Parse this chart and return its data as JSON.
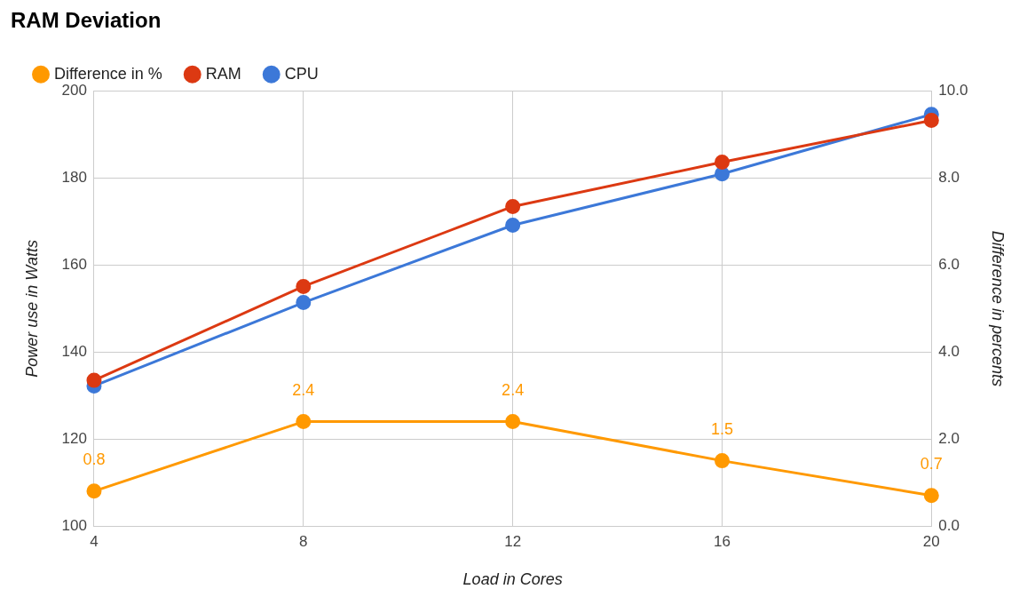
{
  "chart_data": {
    "type": "line",
    "title": "RAM Deviation",
    "xlabel": "Load in Cores",
    "ylabel": "Power use in Watts",
    "y2label": "Difference in percents",
    "x": [
      4,
      8,
      12,
      16,
      20
    ],
    "xlim": [
      4,
      20
    ],
    "xticks": [
      4,
      8,
      12,
      16,
      20
    ],
    "ylim": [
      100,
      200
    ],
    "yticks": [
      100,
      120,
      140,
      160,
      180,
      200
    ],
    "y2lim": [
      0,
      10
    ],
    "y2ticks": [
      {
        "value": 0,
        "label": "0.0"
      },
      {
        "value": 2,
        "label": "2.0"
      },
      {
        "value": 4,
        "label": "4.0"
      },
      {
        "value": 6,
        "label": "6.0"
      },
      {
        "value": 8,
        "label": "8.0"
      },
      {
        "value": 10,
        "label": "10.0"
      }
    ],
    "series": [
      {
        "name": "CPU",
        "color": "#3c78d8",
        "values": [
          132.2,
          151.4,
          169.2,
          181,
          194.7
        ]
      },
      {
        "name": "RAM",
        "color": "#dc3912",
        "values": [
          133.5,
          155.1,
          173.5,
          183.7,
          193.3
        ]
      },
      {
        "name": "Difference in %",
        "color": "#ff9900",
        "axis": "y2",
        "values": [
          0.8,
          2.4,
          2.4,
          1.5,
          0.7
        ],
        "value_labels": [
          "0.8",
          "2.4",
          "2.4",
          "1.5",
          "0.7"
        ]
      }
    ],
    "grid": true,
    "legend": "top left",
    "marker": "circle",
    "line_style": "solid"
  }
}
